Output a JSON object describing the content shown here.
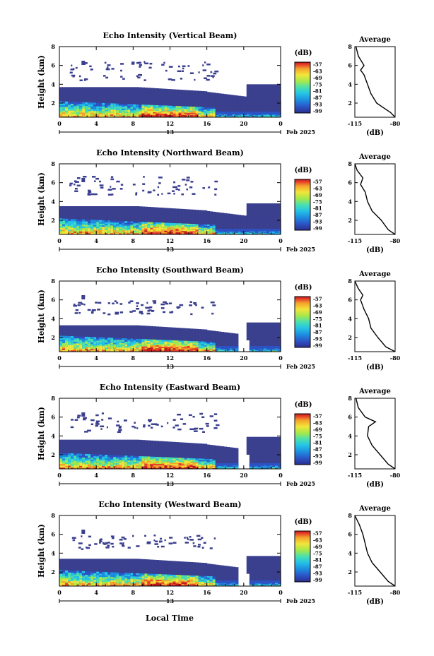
{
  "figure": {
    "xlabel": "Local Time",
    "date_label": "Feb 2025",
    "day_label": "13",
    "colorbar_unit": "(dB)",
    "average_title": "Average",
    "average_xlabel": "(dB)",
    "height_axis_label": "Height (km)"
  },
  "chart_data": [
    {
      "type": "heatmap",
      "title": "Echo Intensity (Vertical Beam)",
      "ylabel": "Height (km)",
      "x_ticks": [
        "0",
        "4",
        "8",
        "12",
        "16",
        "20",
        "0"
      ],
      "xlim_hours": [
        0,
        24
      ],
      "y_ticks": [
        "2",
        "4",
        "6",
        "8"
      ],
      "ylim_km": [
        0.5,
        8
      ],
      "colorbar": {
        "label": "(dB)",
        "ticks": [
          "-57",
          "-63",
          "-69",
          "-75",
          "-81",
          "-87",
          "-93",
          "-99"
        ],
        "range": [
          -99,
          -57
        ]
      },
      "profile": {
        "title": "Average",
        "xlabel": "(dB)",
        "x_ticks": [
          "-115",
          "-80"
        ],
        "xlim": [
          -115,
          -80
        ],
        "y_ticks": [
          "2",
          "4",
          "6",
          "8"
        ],
        "points": [
          [
            -80,
            0.5
          ],
          [
            -84,
            1
          ],
          [
            -90,
            1.5
          ],
          [
            -96,
            2
          ],
          [
            -101,
            3
          ],
          [
            -104,
            4
          ],
          [
            -107,
            5
          ],
          [
            -110,
            5.5
          ],
          [
            -107,
            6
          ],
          [
            -112,
            7
          ],
          [
            -114,
            8
          ]
        ]
      },
      "layer_top_km": 3.7,
      "noise_km": [
        4.5,
        6.5
      ]
    },
    {
      "type": "heatmap",
      "title": "Echo Intensity (Northward Beam)",
      "ylabel": "Height (km)",
      "x_ticks": [
        "0",
        "4",
        "8",
        "12",
        "16",
        "20",
        "0"
      ],
      "xlim_hours": [
        0,
        24
      ],
      "y_ticks": [
        "2",
        "4",
        "6",
        "8"
      ],
      "ylim_km": [
        0.5,
        8
      ],
      "colorbar": {
        "label": "(dB)",
        "ticks": [
          "-57",
          "-63",
          "-69",
          "-75",
          "-81",
          "-87",
          "-93",
          "-99"
        ],
        "range": [
          -99,
          -57
        ]
      },
      "profile": {
        "title": "Average",
        "xlabel": "(dB)",
        "x_ticks": [
          "-115",
          "-80"
        ],
        "xlim": [
          -115,
          -80
        ],
        "y_ticks": [
          "2",
          "4",
          "6",
          "8"
        ],
        "points": [
          [
            -80,
            0.5
          ],
          [
            -86,
            1
          ],
          [
            -92,
            2
          ],
          [
            -100,
            3
          ],
          [
            -104,
            4
          ],
          [
            -106,
            5
          ],
          [
            -110,
            5.8
          ],
          [
            -108,
            6.5
          ],
          [
            -113,
            7.3
          ],
          [
            -115,
            8
          ]
        ]
      },
      "layer_top_km": 3.5,
      "noise_km": [
        4.8,
        6.8
      ]
    },
    {
      "type": "heatmap",
      "title": "Echo Intensity (Southward Beam)",
      "ylabel": "Height (km)",
      "x_ticks": [
        "0",
        "4",
        "8",
        "12",
        "16",
        "20",
        "0"
      ],
      "xlim_hours": [
        0,
        24
      ],
      "y_ticks": [
        "2",
        "4",
        "6",
        "8"
      ],
      "ylim_km": [
        0.5,
        8
      ],
      "colorbar": {
        "label": "(dB)",
        "ticks": [
          "-57",
          "-63",
          "-69",
          "-75",
          "-81",
          "-87",
          "-93",
          "-99"
        ],
        "range": [
          -99,
          -57
        ]
      },
      "profile": {
        "title": "Average",
        "xlabel": "(dB)",
        "x_ticks": [
          "-115",
          "-80"
        ],
        "xlim": [
          -115,
          -80
        ],
        "y_ticks": [
          "2",
          "4",
          "6",
          "8"
        ],
        "points": [
          [
            -80,
            0.5
          ],
          [
            -88,
            1
          ],
          [
            -95,
            2
          ],
          [
            -101,
            3
          ],
          [
            -103,
            4
          ],
          [
            -107,
            5
          ],
          [
            -110,
            6
          ],
          [
            -108,
            6.5
          ],
          [
            -112,
            7.2
          ],
          [
            -115,
            8
          ]
        ]
      },
      "layer_top_km": 3.3,
      "noise_km": [
        4.5,
        6.0
      ]
    },
    {
      "type": "heatmap",
      "title": "Echo Intensity (Eastward Beam)",
      "ylabel": "Height (km)",
      "x_ticks": [
        "0",
        "4",
        "8",
        "12",
        "16",
        "20",
        "0"
      ],
      "xlim_hours": [
        0,
        24
      ],
      "y_ticks": [
        "2",
        "4",
        "6",
        "8"
      ],
      "ylim_km": [
        0.5,
        8
      ],
      "colorbar": {
        "label": "(dB)",
        "ticks": [
          "-57",
          "-63",
          "-69",
          "-75",
          "-81",
          "-87",
          "-93",
          "-99"
        ],
        "range": [
          -99,
          -57
        ]
      },
      "profile": {
        "title": "Average",
        "xlabel": "(dB)",
        "x_ticks": [
          "-115",
          "-80"
        ],
        "xlim": [
          -115,
          -80
        ],
        "y_ticks": [
          "2",
          "4",
          "6",
          "8"
        ],
        "points": [
          [
            -80,
            0.5
          ],
          [
            -86,
            1
          ],
          [
            -93,
            2
          ],
          [
            -100,
            3
          ],
          [
            -104,
            4
          ],
          [
            -103,
            5
          ],
          [
            -97,
            5.5
          ],
          [
            -106,
            6
          ],
          [
            -112,
            7
          ],
          [
            -114,
            8
          ]
        ]
      },
      "layer_top_km": 3.6,
      "noise_km": [
        4.5,
        6.5
      ]
    },
    {
      "type": "heatmap",
      "title": "Echo Intensity (Westward Beam)",
      "ylabel": "Height (km)",
      "x_ticks": [
        "0",
        "4",
        "8",
        "12",
        "16",
        "20",
        "0"
      ],
      "xlim_hours": [
        0,
        24
      ],
      "y_ticks": [
        "2",
        "4",
        "6",
        "8"
      ],
      "ylim_km": [
        0.5,
        8
      ],
      "colorbar": {
        "label": "(dB)",
        "ticks": [
          "-57",
          "-63",
          "-69",
          "-75",
          "-81",
          "-87",
          "-93",
          "-99"
        ],
        "range": [
          -99,
          -57
        ]
      },
      "profile": {
        "title": "Average",
        "xlabel": "(dB)",
        "x_ticks": [
          "-115",
          "-80"
        ],
        "xlim": [
          -115,
          -80
        ],
        "y_ticks": [
          "2",
          "4",
          "6",
          "8"
        ],
        "points": [
          [
            -80,
            0.5
          ],
          [
            -86,
            1
          ],
          [
            -93,
            2
          ],
          [
            -100,
            3
          ],
          [
            -104,
            4
          ],
          [
            -106,
            5
          ],
          [
            -108,
            6
          ],
          [
            -111,
            7
          ],
          [
            -115,
            8
          ]
        ]
      },
      "layer_top_km": 3.4,
      "noise_km": [
        4.5,
        6.0
      ]
    }
  ],
  "colors": {
    "colormap": [
      "#2b2f8c",
      "#2c52c4",
      "#1d8de0",
      "#25c3e6",
      "#49e0b0",
      "#a4e84c",
      "#f2e53a",
      "#f5a42c",
      "#e8432a",
      "#c0181c"
    ],
    "background_echo": "#3a3f8e"
  }
}
